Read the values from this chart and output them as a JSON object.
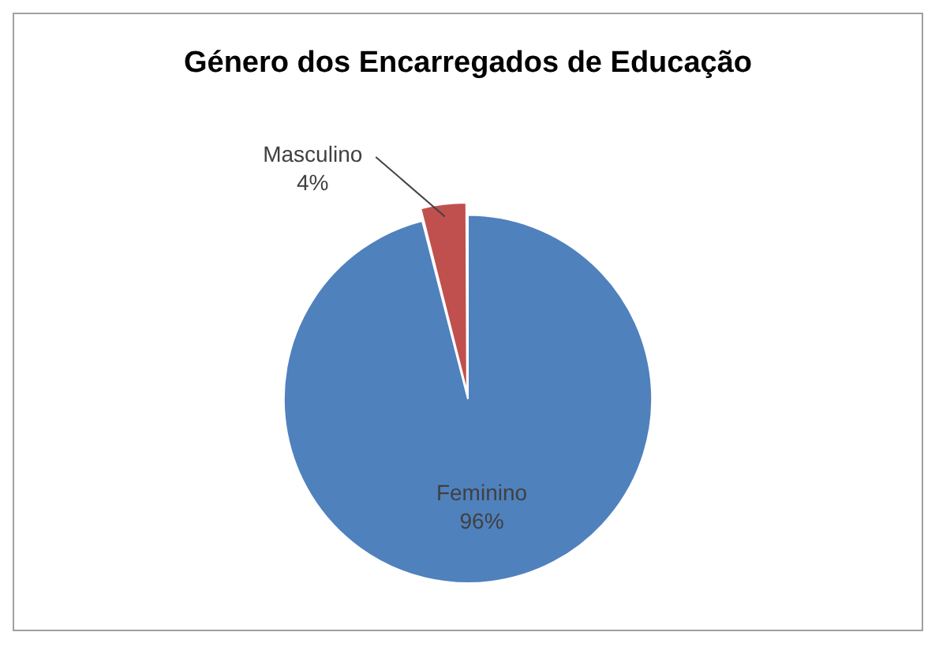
{
  "chart_data": {
    "type": "pie",
    "title": "Género dos Encarregados de Educação",
    "categories": [
      "Feminino",
      "Masculino"
    ],
    "values": [
      96,
      4
    ],
    "colors": [
      "#4f81bd",
      "#c0504d"
    ],
    "value_labels": [
      "96%",
      "4%"
    ],
    "legend": false
  }
}
